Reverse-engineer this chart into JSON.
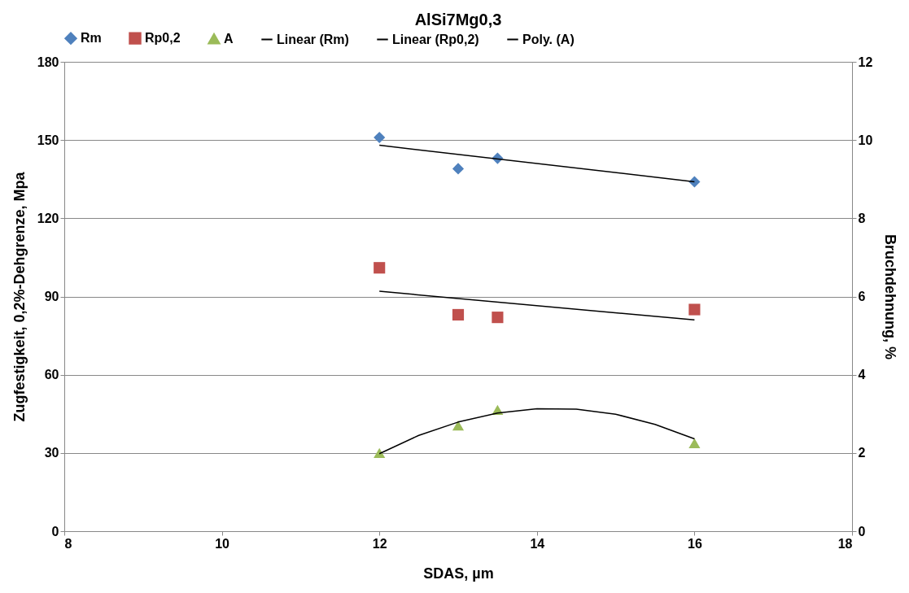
{
  "chart_data": {
    "type": "scatter",
    "title": "AlSi7Mg0,3",
    "xlabel": "SDAS, µm",
    "ylabel": "Zugfestigkeit, 0,2%-Dehgrenze, Mpa",
    "y2label": "Bruchdehnung, %",
    "xlim": [
      8,
      18
    ],
    "xticks": [
      8,
      10,
      12,
      14,
      16,
      18
    ],
    "ylim": [
      0,
      180
    ],
    "yticks": [
      0,
      30,
      60,
      90,
      120,
      150,
      180
    ],
    "y2lim": [
      0,
      12
    ],
    "y2ticks": [
      0,
      2,
      4,
      6,
      8,
      10,
      12
    ],
    "grid": "y",
    "legend": "top",
    "series": [
      {
        "name": "Rm",
        "marker": "diamond",
        "color": "#4f81bd",
        "x": [
          12,
          13,
          13.5,
          16
        ],
        "values": [
          151,
          139,
          143,
          134
        ]
      },
      {
        "name": "Rp0,2",
        "marker": "square",
        "color": "#c0504d",
        "x": [
          12,
          13,
          13.5,
          16
        ],
        "values": [
          101,
          83,
          82,
          85
        ]
      },
      {
        "name": "A",
        "marker": "triangle",
        "axis": "y2",
        "color": "#9bbb59",
        "x": [
          12,
          13,
          13.5,
          16
        ],
        "values": [
          2.0,
          2.7,
          3.1,
          2.25
        ]
      },
      {
        "name": "Linear (Rm)",
        "type": "line",
        "color": "#000000",
        "x": [
          12,
          16
        ],
        "values": [
          148,
          134
        ]
      },
      {
        "name": "Linear (Rp0,2)",
        "type": "line",
        "color": "#000000",
        "x": [
          12,
          16
        ],
        "values": [
          92,
          81
        ]
      },
      {
        "name": "Poly. (A)",
        "type": "line",
        "axis": "y2",
        "color": "#000000",
        "x": [
          12,
          12.5,
          13,
          13.5,
          14,
          14.5,
          15,
          15.5,
          16
        ],
        "values": [
          1.98,
          2.45,
          2.79,
          3.02,
          3.13,
          3.12,
          2.99,
          2.73,
          2.36
        ]
      }
    ]
  }
}
